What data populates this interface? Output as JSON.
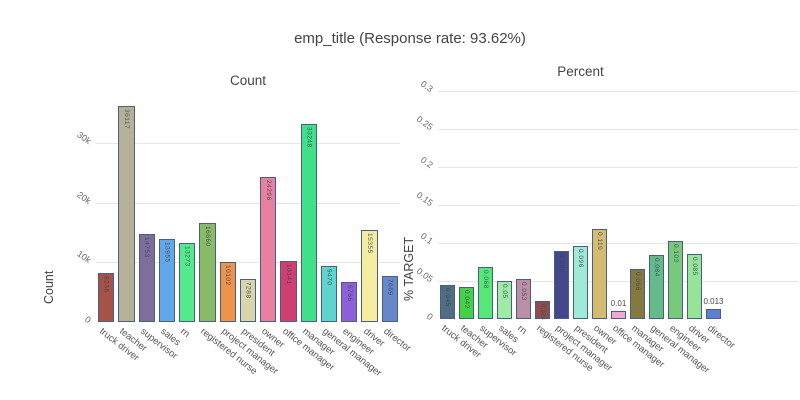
{
  "figure": {
    "title": "emp_title (Response rate: 93.62%)"
  },
  "categories": [
    "truck driver",
    "teacher",
    "supervisor",
    "sales",
    "rn",
    "registered nurse",
    "project manager",
    "president",
    "owner",
    "office manager",
    "manager",
    "general manager",
    "engineer",
    "driver",
    "director"
  ],
  "chart_data": [
    {
      "type": "bar",
      "title": "Count",
      "ylabel": "Count",
      "categories": [
        "truck driver",
        "teacher",
        "supervisor",
        "sales",
        "rn",
        "registered nurse",
        "project manager",
        "president",
        "owner",
        "office manager",
        "manager",
        "general manager",
        "engineer",
        "driver",
        "director"
      ],
      "values": [
        8236,
        36117,
        14753,
        13955,
        13273,
        16660,
        10102,
        7288,
        24296,
        10141,
        33248,
        9470,
        6766,
        15355,
        7669
      ],
      "value_labels": [
        "8236",
        "36117",
        "14753",
        "13955",
        "13273",
        "16660",
        "10102",
        "7288",
        "24296",
        "10141",
        "33248",
        "9470",
        "6766",
        "15355",
        "7669"
      ],
      "bar_colors": [
        "#a65248",
        "#b5b199",
        "#7e6f9a",
        "#62a7e8",
        "#55e98e",
        "#89ba68",
        "#ee9349",
        "#d8d4ab",
        "#ea809f",
        "#cf3f70",
        "#3fe089",
        "#5ed3d0",
        "#8d60d9",
        "#f4eda1",
        "#6688ca"
      ],
      "ylim": [
        0,
        37200
      ],
      "yticks": [
        0,
        10000,
        20000,
        30000
      ],
      "ytick_labels": [
        "0",
        "10k",
        "20k",
        "30k"
      ],
      "grid": true,
      "legend": "none"
    },
    {
      "type": "bar",
      "title": "Percent",
      "ylabel": "% TARGET",
      "categories": [
        "truck driver",
        "teacher",
        "supervisor",
        "sales",
        "rn",
        "registered nurse",
        "project manager",
        "president",
        "owner",
        "office manager",
        "manager",
        "general manager",
        "engineer",
        "driver",
        "director"
      ],
      "values": [
        0.045,
        0.042,
        0.068,
        0.05,
        0.053,
        0.024,
        0.089,
        0.096,
        0.119,
        0.01,
        0.066,
        0.084,
        0.103,
        0.085,
        0.013
      ],
      "value_labels": [
        "0.045",
        "0.042",
        "0.068",
        "0.05",
        "0.053",
        "0.024",
        "0.089",
        "0.096",
        "0.119",
        "0.01",
        "0.066",
        "0.084",
        "0.103",
        "0.085",
        "0.013"
      ],
      "bar_colors": [
        "#4f6e80",
        "#43d243",
        "#55e878",
        "#9deca5",
        "#bb8fa6",
        "#8f4c4c",
        "#45478c",
        "#9fead4",
        "#d5bb72",
        "#f3a8d2",
        "#867940",
        "#65ba8c",
        "#77ca7c",
        "#95e497",
        "#5d7ed2"
      ],
      "ylim": [
        0,
        0.3
      ],
      "yticks": [
        0,
        0.05,
        0.1,
        0.15,
        0.2,
        0.25,
        0.3
      ],
      "ytick_labels": [
        "0",
        "0.05",
        "0.1",
        "0.15",
        "0.2",
        "0.25",
        "0.3"
      ],
      "grid": true,
      "legend": "none"
    }
  ],
  "colors": {
    "bar_border": "#4a5e82",
    "grid": "#e6e6e6",
    "title_text": "#444444",
    "tick_text": "#6b6b6b",
    "background": "#ffffff"
  }
}
